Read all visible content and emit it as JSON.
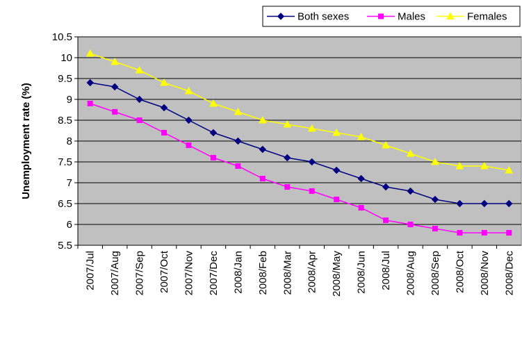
{
  "chart_data": {
    "type": "line",
    "y_label": "Unemployment rate (%)",
    "categories": [
      "2007/Jul",
      "2007/Aug",
      "2007/Sep",
      "2007/Oct",
      "2007/Nov",
      "2007/Dec",
      "2008/Jan",
      "2008/Feb",
      "2008/Mar",
      "2008/Apr",
      "2008/May",
      "2008/Jun",
      "2008/Jul",
      "2008/Aug",
      "2008/Sep",
      "2008/Oct",
      "2008/Nov",
      "2008/Dec"
    ],
    "series": [
      {
        "name": "Both sexes",
        "color": "#000080",
        "marker": "diamond",
        "values": [
          9.4,
          9.3,
          9.0,
          8.8,
          8.5,
          8.2,
          8.0,
          7.8,
          7.6,
          7.5,
          7.3,
          7.1,
          6.9,
          6.8,
          6.6,
          6.5,
          6.5,
          6.5
        ]
      },
      {
        "name": "Males",
        "color": "#ff00ff",
        "marker": "square",
        "values": [
          8.9,
          8.7,
          8.5,
          8.2,
          7.9,
          7.6,
          7.4,
          7.1,
          6.9,
          6.8,
          6.6,
          6.4,
          6.1,
          6.0,
          5.9,
          5.8,
          5.8,
          5.8
        ]
      },
      {
        "name": "Females",
        "color": "#ffff00",
        "marker": "triangle",
        "values": [
          10.1,
          9.9,
          9.7,
          9.4,
          9.2,
          8.9,
          8.7,
          8.5,
          8.4,
          8.3,
          8.2,
          8.1,
          7.9,
          7.7,
          7.5,
          7.4,
          7.4,
          7.3
        ]
      }
    ],
    "ylim": [
      5.5,
      10.5
    ],
    "yticks": [
      5.5,
      6,
      6.5,
      7,
      7.5,
      8,
      8.5,
      9,
      9.5,
      10,
      10.5
    ],
    "grid": true,
    "legend": "top-right",
    "plot_background": "#c0c0c0"
  }
}
